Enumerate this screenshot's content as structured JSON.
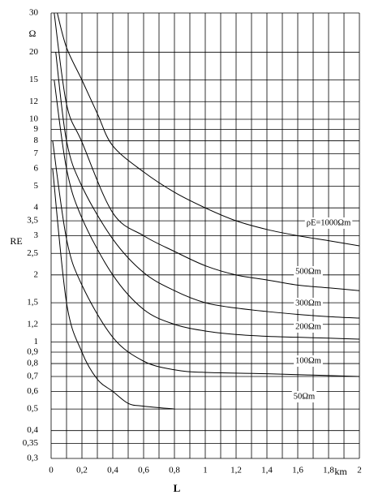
{
  "chart_data": {
    "type": "line",
    "x_label": "L",
    "x_unit": "km",
    "y_label": "RE",
    "y_unit": "Ω",
    "xlim": [
      0,
      2
    ],
    "xticks": [
      0,
      {
        "value": 0.2,
        "label": "0,2"
      },
      {
        "value": 0.4,
        "label": "0,4"
      },
      {
        "value": 0.6,
        "label": "0,6"
      },
      {
        "value": 0.8,
        "label": "0,8"
      },
      1,
      {
        "value": 1.2,
        "label": "1,2"
      },
      {
        "value": 1.4,
        "label": "1,4"
      },
      {
        "value": 1.6,
        "label": "1,6"
      },
      {
        "value": 1.8,
        "label": "1,8"
      },
      2
    ],
    "xminorticks": [
      0.1,
      0.3,
      0.5,
      0.7,
      0.9,
      1.1,
      1.3,
      1.5,
      1.7,
      1.9
    ],
    "ylim": [
      0.3,
      30
    ],
    "log_y": true,
    "grid": true,
    "yticks": [
      {
        "value": 0.3,
        "label": "0,3"
      },
      {
        "value": 0.35,
        "label": "0,35"
      },
      {
        "value": 0.4,
        "label": "0,4"
      },
      {
        "value": 0.5,
        "label": "0,5"
      },
      {
        "value": 0.6,
        "label": "0,6"
      },
      {
        "value": 0.7,
        "label": "0,7"
      },
      {
        "value": 0.8,
        "label": "0,8"
      },
      {
        "value": 0.9,
        "label": "0,9"
      },
      1,
      {
        "value": 1.2,
        "label": "1,2"
      },
      {
        "value": 1.5,
        "label": "1,5"
      },
      2,
      {
        "value": 2.5,
        "label": "2,5"
      },
      3,
      {
        "value": 3.5,
        "label": "3,5"
      },
      4,
      5,
      6,
      7,
      8,
      9,
      10,
      12,
      15,
      20,
      30
    ],
    "series": [
      {
        "name": "ρE=1000Ωm",
        "color": "#000000",
        "x": [
          0.04,
          0.1,
          0.2,
          0.3,
          0.4,
          0.6,
          0.8,
          1,
          1.2,
          1.4,
          1.6,
          1.8,
          2
        ],
        "values": [
          30,
          21,
          15,
          10.6,
          7.6,
          5.8,
          4.7,
          4,
          3.5,
          3.2,
          3,
          2.85,
          2.7
        ]
      },
      {
        "name": "500Ωm",
        "color": "#000000",
        "x": [
          0.02,
          0.1,
          0.2,
          0.4,
          0.6,
          0.8,
          1,
          1.2,
          1.4,
          1.6,
          1.8,
          2
        ],
        "values": [
          30,
          11.7,
          7.9,
          3.8,
          3,
          2.55,
          2.2,
          2,
          1.9,
          1.8,
          1.75,
          1.7
        ]
      },
      {
        "name": "300Ωm",
        "color": "#000000",
        "x": [
          0.03,
          0.1,
          0.2,
          0.4,
          0.6,
          0.8,
          1,
          1.2,
          1.4,
          1.6,
          1.8,
          2
        ],
        "values": [
          20,
          8,
          5,
          2.9,
          2.05,
          1.7,
          1.5,
          1.42,
          1.37,
          1.33,
          1.3,
          1.28
        ]
      },
      {
        "name": "200Ωm",
        "color": "#000000",
        "x": [
          0.02,
          0.1,
          0.2,
          0.4,
          0.6,
          0.8,
          1,
          1.2,
          1.4,
          1.6,
          1.8,
          2
        ],
        "values": [
          15,
          6,
          3.6,
          2,
          1.4,
          1.2,
          1.12,
          1.08,
          1.06,
          1.05,
          1.04,
          1.03
        ]
      },
      {
        "name": "100Ωm",
        "color": "#000000",
        "x": [
          0.01,
          0.1,
          0.2,
          0.4,
          0.6,
          0.8,
          1,
          1.4,
          2
        ],
        "values": [
          8,
          2.9,
          1.8,
          1.05,
          0.82,
          0.75,
          0.73,
          0.72,
          0.7
        ]
      },
      {
        "name": "50Ωm",
        "color": "#000000",
        "x": [
          0.01,
          0.1,
          0.2,
          0.3,
          0.4,
          0.5,
          0.6,
          0.8
        ],
        "values": [
          6,
          1.5,
          0.9,
          0.68,
          0.6,
          0.53,
          0.515,
          0.5
        ]
      }
    ]
  }
}
